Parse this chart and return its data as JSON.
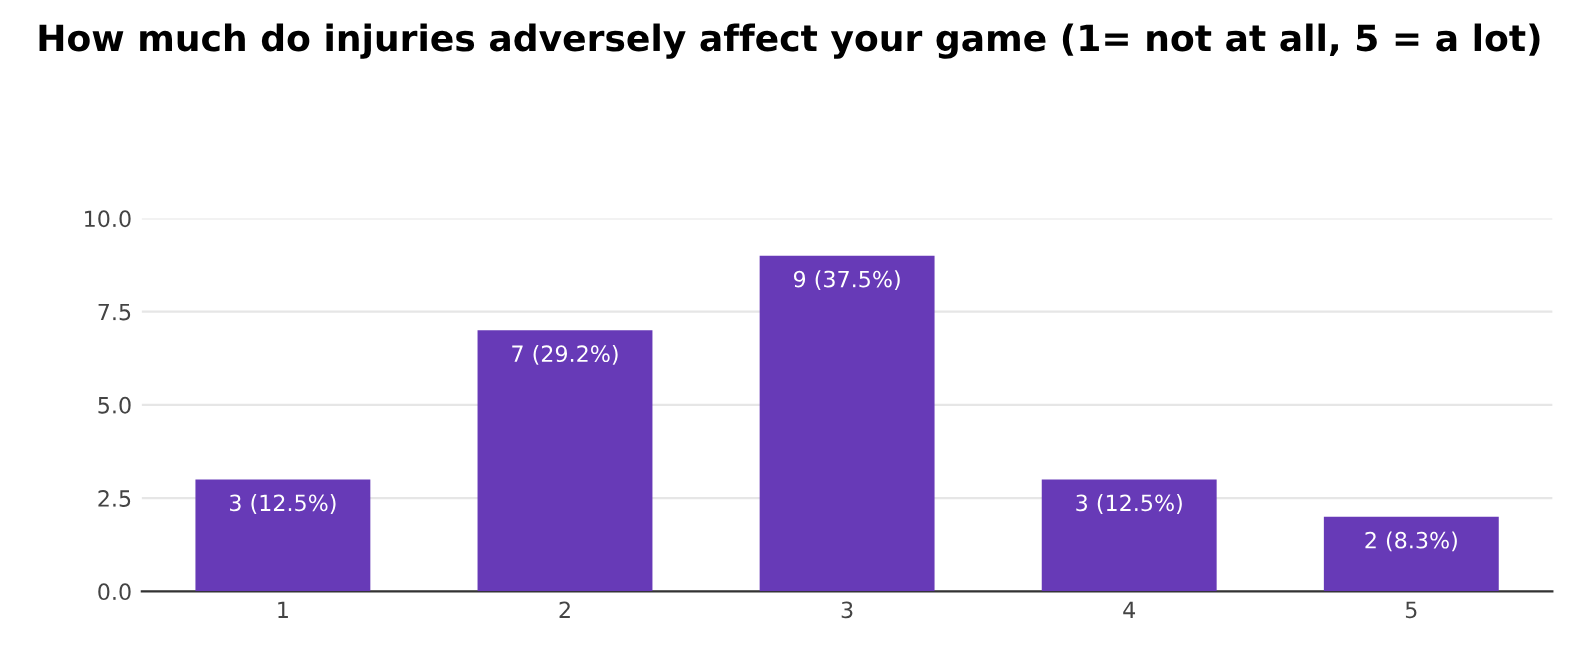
{
  "chart_data": {
    "type": "bar",
    "title": "How much do injuries adversely affect your game (1= not at all, 5 = a lot)",
    "categories": [
      "1",
      "2",
      "3",
      "4",
      "5"
    ],
    "values": [
      3,
      7,
      9,
      3,
      2
    ],
    "value_labels": [
      "3 (12.5%)",
      "7 (29.2%)",
      "9 (37.5%)",
      "3 (12.5%)",
      "2 (8.3%)"
    ],
    "color": "#673ab7",
    "ylim": [
      0,
      10
    ],
    "yticks": [
      {
        "value": 0,
        "label": "0.0"
      },
      {
        "value": 2.5,
        "label": "2.5"
      },
      {
        "value": 5,
        "label": "5.0"
      },
      {
        "value": 7.5,
        "label": "7.5"
      },
      {
        "value": 10,
        "label": "10.0"
      }
    ],
    "grid": "y"
  }
}
